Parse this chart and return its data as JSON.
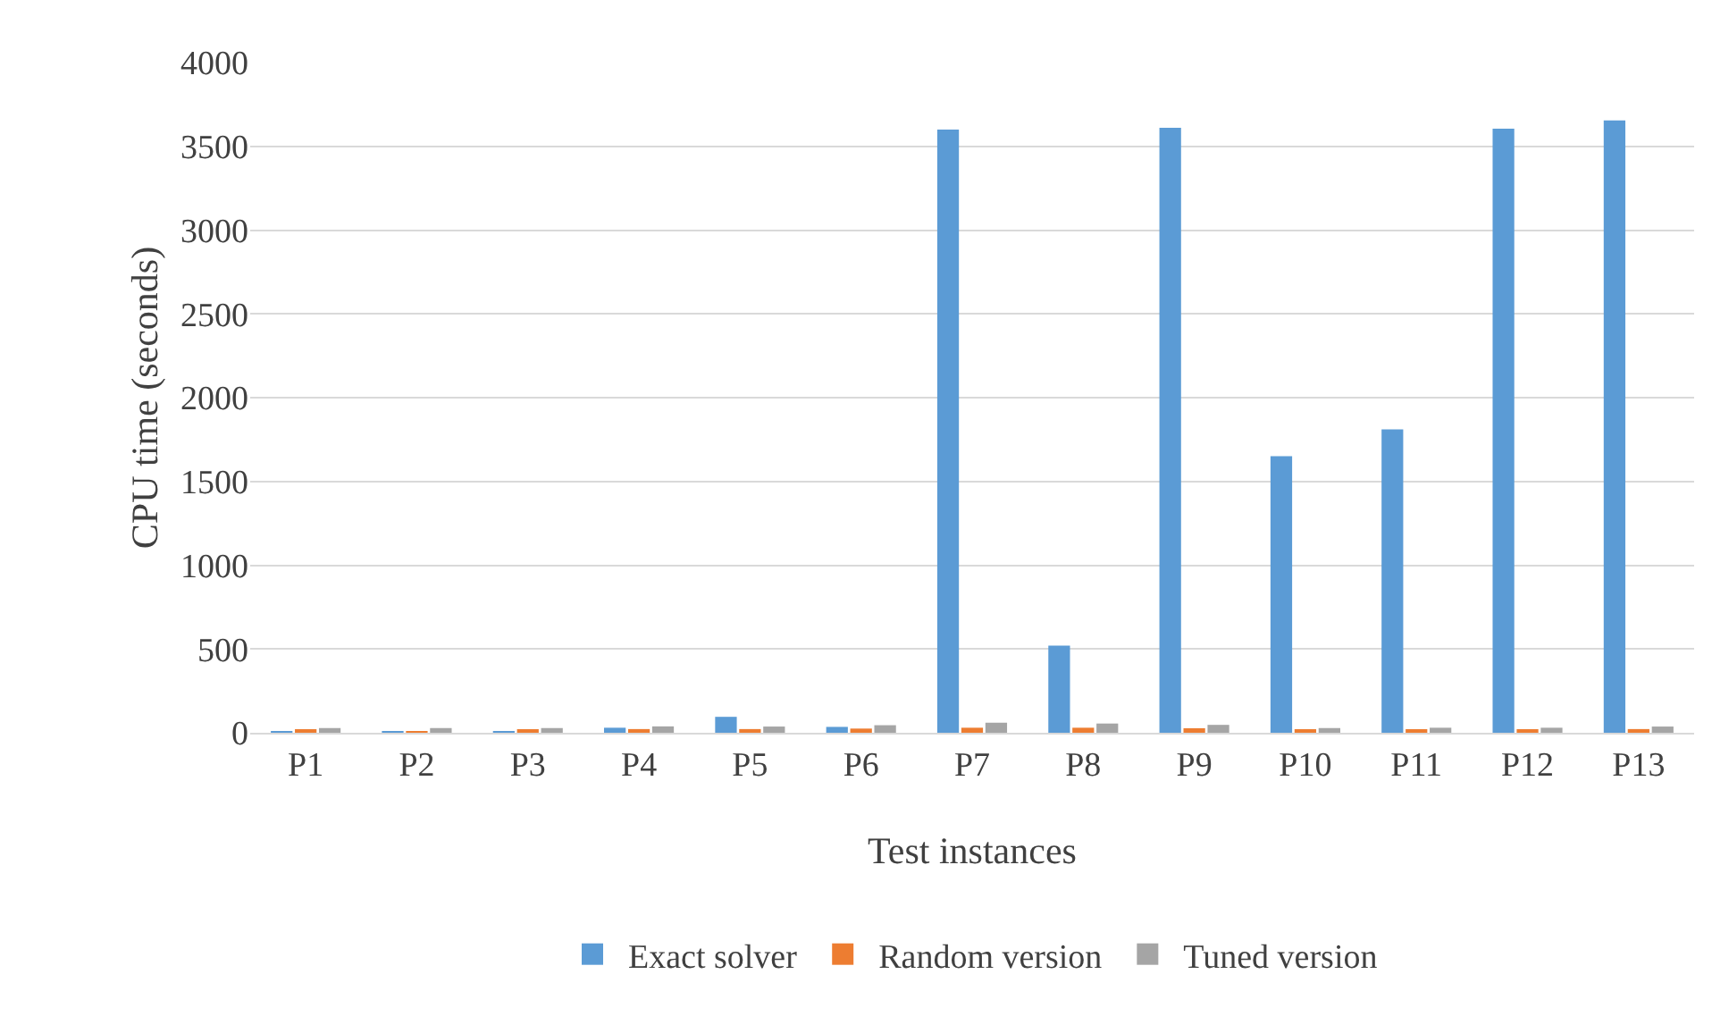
{
  "chart_data": {
    "type": "bar",
    "xlabel": "Test instances",
    "ylabel": "CPU time (seconds)",
    "categories": [
      "P1",
      "P2",
      "P3",
      "P4",
      "P5",
      "P6",
      "P7",
      "P8",
      "P9",
      "P10",
      "P11",
      "P12",
      "P13"
    ],
    "series": [
      {
        "name": "Exact solver",
        "color": "#5b9bd5",
        "values": [
          2,
          1,
          1,
          30,
          95,
          35,
          3600,
          520,
          3610,
          1650,
          1810,
          3605,
          3655
        ]
      },
      {
        "name": "Random version",
        "color": "#ed7d31",
        "values": [
          15,
          10,
          17,
          22,
          22,
          25,
          30,
          30,
          27,
          18,
          15,
          15,
          22
        ]
      },
      {
        "name": "Tuned version",
        "color": "#a5a5a5",
        "values": [
          28,
          28,
          28,
          38,
          37,
          45,
          60,
          55,
          47,
          28,
          30,
          30,
          37
        ]
      }
    ],
    "ylim": [
      0,
      4000
    ],
    "yticks": [
      0,
      500,
      1000,
      1500,
      2000,
      2500,
      3000,
      3500,
      4000
    ],
    "grid": "y",
    "legend": "bottom"
  }
}
